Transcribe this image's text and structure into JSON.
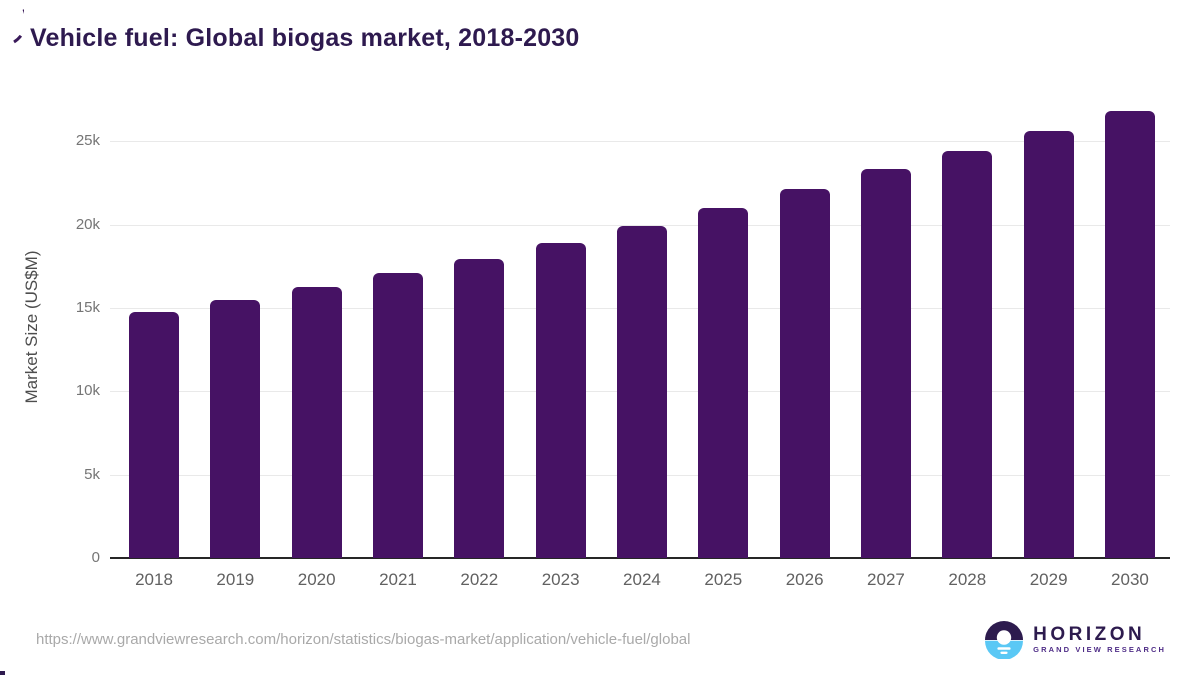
{
  "title": "Vehicle fuel: Global biogas market, 2018-2030",
  "chart_data": {
    "type": "bar",
    "title": "Vehicle fuel: Global biogas market, 2018-2030",
    "categories": [
      "2018",
      "2019",
      "2020",
      "2021",
      "2022",
      "2023",
      "2024",
      "2025",
      "2026",
      "2027",
      "2028",
      "2029",
      "2030"
    ],
    "values": [
      14750,
      15500,
      16250,
      17100,
      17950,
      18900,
      19950,
      21000,
      22150,
      23350,
      24400,
      25650,
      26800
    ],
    "xlabel": "",
    "ylabel": "Market Size (US$M)",
    "ylim": [
      0,
      27780
    ],
    "yticks": [
      0,
      5000,
      10000,
      15000,
      20000,
      25000
    ],
    "ytick_labels": [
      "0",
      "5k",
      "10k",
      "15k",
      "20k",
      "25k"
    ],
    "grid": "horizontal gridlines on, y-ticks every 5k",
    "legend": "none",
    "bar_color": "#461264"
  },
  "footer": {
    "source_url": "https://www.grandviewresearch.com/horizon/statistics/biogas-market/application/vehicle-fuel/global",
    "logo": {
      "brand": "HORIZON",
      "tagline": "GRAND VIEW RESEARCH"
    }
  },
  "colors": {
    "bar": "#461264",
    "title": "#2e1a4f",
    "tick_text": "#757575",
    "x_label_text": "#616161",
    "y_title_text": "#4d4d4d",
    "gridline": "#e9e9e9",
    "baseline": "#262626",
    "url_text": "#a9a9a9",
    "logo_purple": "#2d1b4e",
    "logo_blue": "#5ac8f5",
    "logo_tagline": "#4f2d87"
  }
}
